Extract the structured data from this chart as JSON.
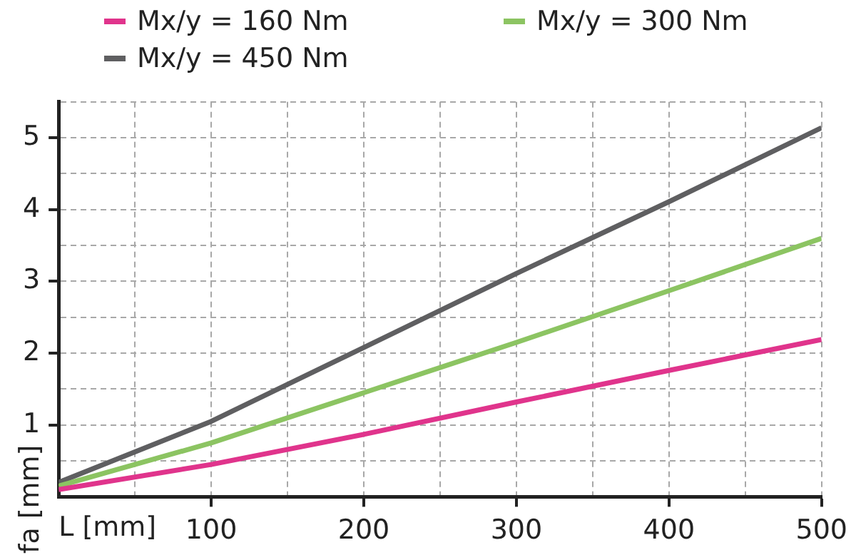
{
  "chart_data": {
    "type": "line",
    "xlabel": "L [mm]",
    "ylabel": "fa [mm]",
    "x": [
      0,
      100,
      200,
      300,
      400,
      500
    ],
    "series": [
      {
        "name": "Mx/y = 160 Nm",
        "color": "#e0348c",
        "values": [
          0.1,
          0.45,
          0.87,
          1.32,
          1.76,
          2.19
        ]
      },
      {
        "name": "Mx/y = 300 Nm",
        "color": "#8cc462",
        "values": [
          0.15,
          0.75,
          1.45,
          2.15,
          2.87,
          3.6
        ]
      },
      {
        "name": "Mx/y = 450 Nm",
        "color": "#5f5f61",
        "values": [
          0.2,
          1.05,
          2.08,
          3.11,
          4.11,
          5.14
        ]
      }
    ],
    "xlim": [
      0,
      500
    ],
    "xticks": [
      {
        "value": 0,
        "label": null
      },
      {
        "value": 50,
        "label": null
      },
      100,
      {
        "value": 150,
        "label": null
      },
      200,
      {
        "value": 250,
        "label": null
      },
      300,
      {
        "value": 350,
        "label": null
      },
      400,
      {
        "value": 450,
        "label": null
      },
      500
    ],
    "ylim": [
      0,
      5.5
    ],
    "yticks": [
      {
        "value": 0,
        "label": null
      },
      {
        "value": 0.5,
        "label": null
      },
      1,
      {
        "value": 1.5,
        "label": null
      },
      2,
      {
        "value": 2.5,
        "label": null
      },
      3,
      {
        "value": 3.5,
        "label": null
      },
      4,
      {
        "value": 4.5,
        "label": null
      },
      5,
      {
        "value": 5.5,
        "label": null
      }
    ],
    "grid": true,
    "legend": "top",
    "marker": "none",
    "line_style": "solid"
  }
}
